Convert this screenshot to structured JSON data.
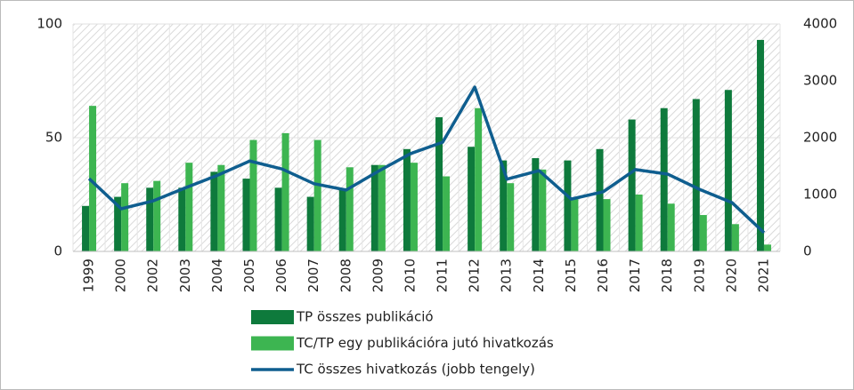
{
  "chart_data": {
    "type": "bar-line",
    "categories": [
      "1999",
      "2000",
      "2002",
      "2003",
      "2004",
      "2005",
      "2006",
      "2007",
      "2008",
      "2009",
      "2010",
      "2011",
      "2012",
      "2013",
      "2014",
      "2015",
      "2016",
      "2017",
      "2018",
      "2019",
      "2020",
      "2021"
    ],
    "series": [
      {
        "name": "TP összes publikáció",
        "color": "#0e7a3c",
        "type": "bar",
        "values": [
          20,
          24,
          28,
          28,
          35,
          32,
          28,
          24,
          27,
          38,
          45,
          59,
          46,
          40,
          41,
          40,
          45,
          58,
          63,
          67,
          71,
          93
        ]
      },
      {
        "name": "TC/TP egy publikációra jutó hivatkozás",
        "color": "#3db551",
        "type": "bar",
        "values": [
          64,
          30,
          31,
          39,
          38,
          49,
          52,
          49,
          37,
          38,
          39,
          33,
          63,
          30,
          36,
          23,
          23,
          25,
          21,
          16,
          12,
          3
        ]
      },
      {
        "name": "TC összes hivatkozás (jobb tengely)",
        "color": "#0f5e8f",
        "type": "line",
        "axis": "y2",
        "values": [
          1280,
          750,
          890,
          1120,
          1340,
          1590,
          1450,
          1190,
          1080,
          1410,
          1720,
          1920,
          2890,
          1270,
          1420,
          920,
          1050,
          1440,
          1360,
          1090,
          860,
          330
        ]
      }
    ],
    "ylim": [
      0,
      100
    ],
    "yticks": [
      0,
      50,
      100
    ],
    "y2lim": [
      0,
      4000
    ],
    "y2ticks": [
      0,
      1000,
      2000,
      3000,
      4000
    ],
    "grid": true,
    "legend": "bottom"
  }
}
